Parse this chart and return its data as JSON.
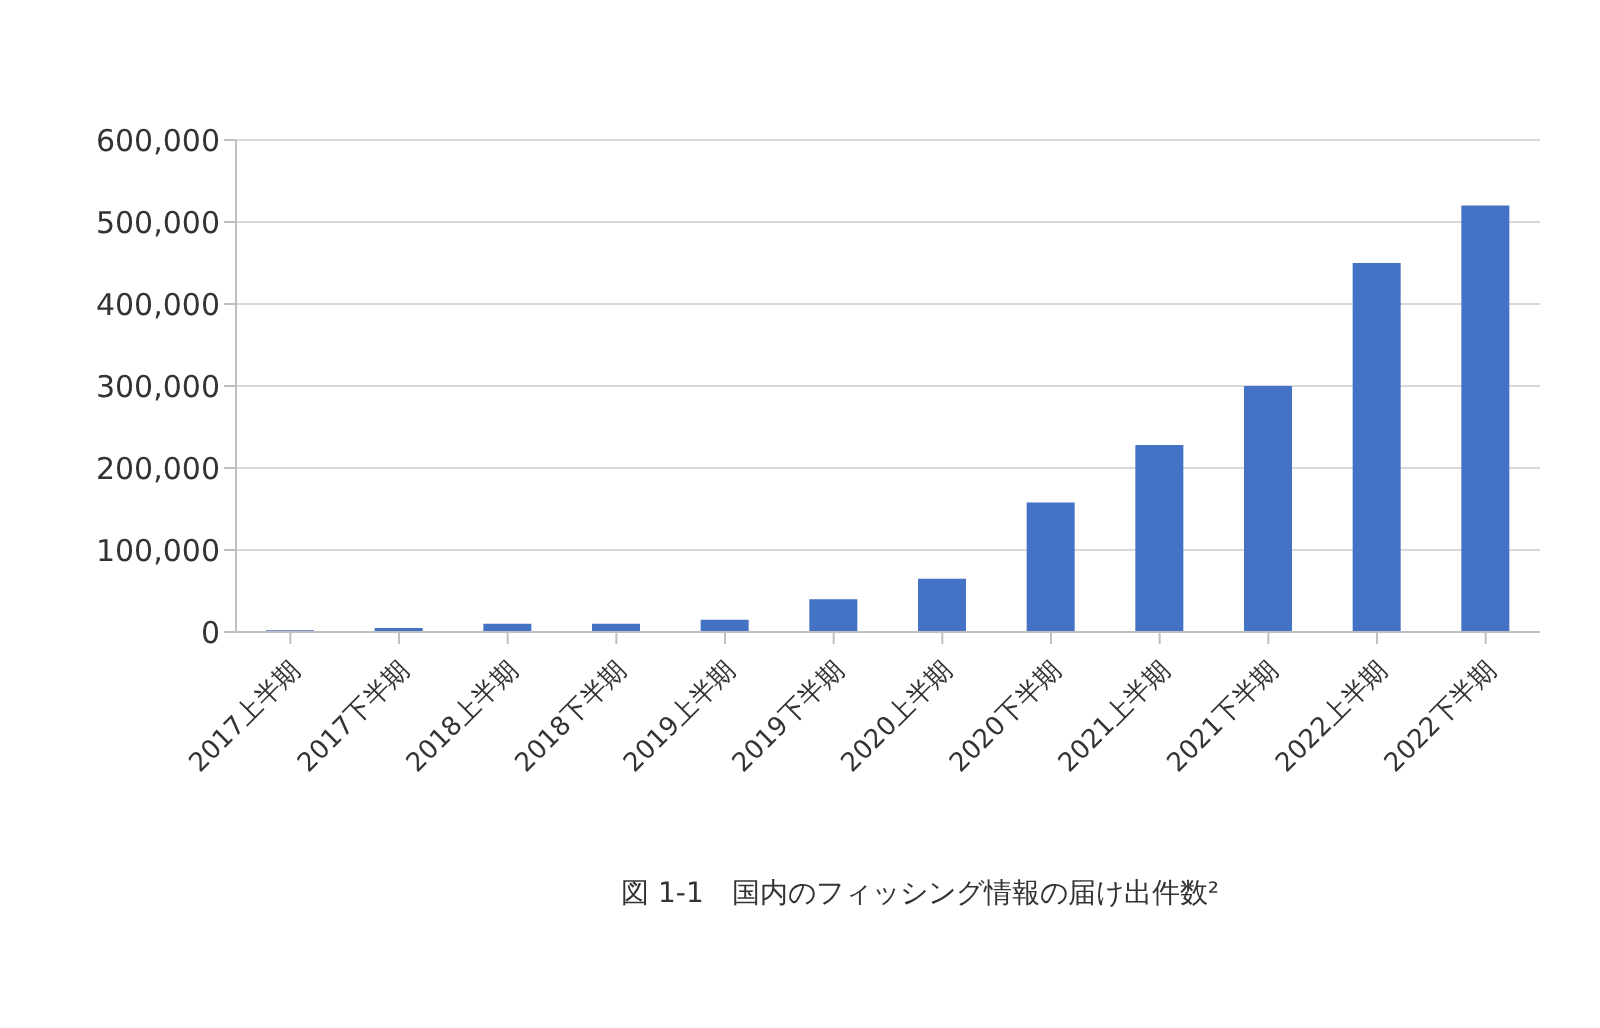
{
  "chart_data": {
    "type": "bar",
    "title": "図 1-1　国内のフィッシング情報の届け出件数²",
    "categories": [
      "2017上半期",
      "2017下半期",
      "2018上半期",
      "2018下半期",
      "2019上半期",
      "2019下半期",
      "2020上半期",
      "2020下半期",
      "2021上半期",
      "2021下半期",
      "2022上半期",
      "2022下半期"
    ],
    "values": [
      2000,
      5000,
      10000,
      10000,
      15000,
      40000,
      65000,
      158000,
      228000,
      300000,
      450000,
      520000
    ],
    "color": "#4472c4",
    "ylim": [
      0,
      600000
    ],
    "yticks": [
      0,
      {
        "value": 100000,
        "label": "100,000"
      },
      {
        "value": 200000,
        "label": "200,000"
      },
      {
        "value": 300000,
        "label": "300,000"
      },
      {
        "value": 400000,
        "label": "400,000"
      },
      {
        "value": 500000,
        "label": "500,000"
      },
      {
        "value": 600000,
        "label": "600,000"
      }
    ],
    "grid": "y"
  }
}
